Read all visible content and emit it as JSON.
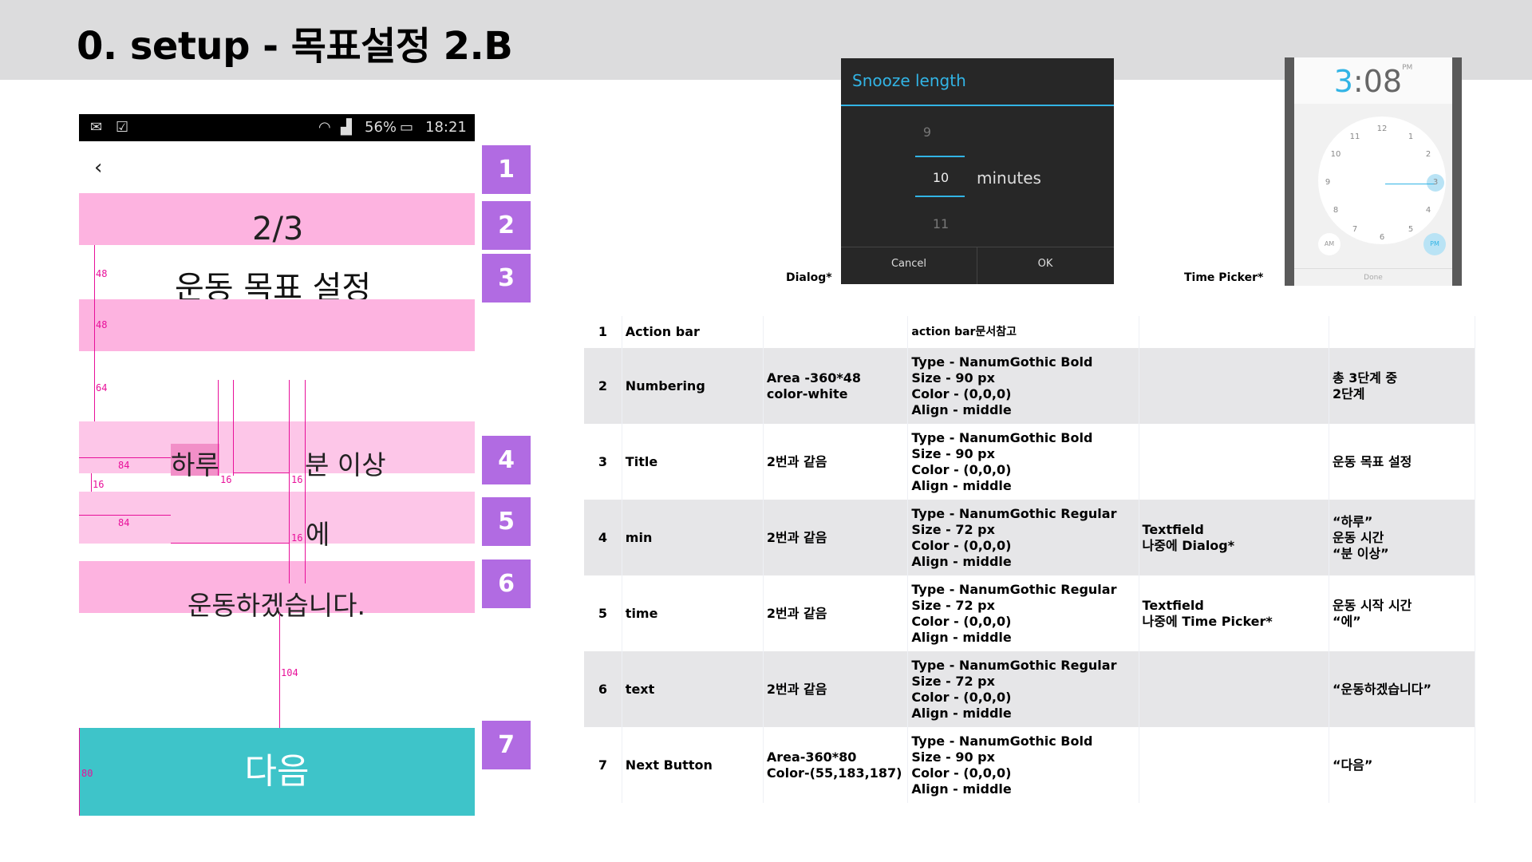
{
  "page": {
    "title": "0. setup - 목표설정 2.B"
  },
  "phone": {
    "status_bar": {
      "battery": "56%",
      "time": "18:21",
      "icons": [
        "mail-icon",
        "inbox-icon",
        "wifi-icon",
        "signal-icon",
        "battery-icon"
      ]
    },
    "back": "‹",
    "numbering": "2/3",
    "title": "운동 목표 설정",
    "row_min": {
      "value": "하루",
      "suffix": "분 이상"
    },
    "row_time": {
      "suffix": "에"
    },
    "row_text": "운동하겠습니다.",
    "next_button": "다음",
    "colors": {
      "pink_strong": "#fdb3e0",
      "pink_light": "#fdc6e8",
      "next_button": "#3ec4c9",
      "guide": "#e8109a"
    },
    "guides": [
      "48",
      "48",
      "64",
      "84",
      "16",
      "16",
      "16",
      "84",
      "16",
      "104",
      "80"
    ]
  },
  "markers": [
    "1",
    "2",
    "3",
    "4",
    "5",
    "6",
    "7"
  ],
  "dialog": {
    "caption": "Dialog*",
    "title": "Snooze length",
    "values": [
      "9",
      "10",
      "11"
    ],
    "unit": "minutes",
    "cancel": "Cancel",
    "ok": "OK"
  },
  "time_picker": {
    "caption": "Time Picker*",
    "hour": "3",
    "colon": ":",
    "minute": "08",
    "ampm": "PM",
    "numbers": [
      "12",
      "1",
      "2",
      "3",
      "4",
      "5",
      "6",
      "7",
      "8",
      "9",
      "10",
      "11"
    ],
    "am": "AM",
    "pm": "PM",
    "done": "Done"
  },
  "spec_table": {
    "rows": [
      {
        "no": "1",
        "name": "Action bar",
        "area": "",
        "spec": [
          "action bar문서참고"
        ],
        "note": [],
        "text": []
      },
      {
        "no": "2",
        "name": "Numbering",
        "area": [
          "Area -360*48",
          "color-white"
        ],
        "spec": [
          "Type - NanumGothic Bold",
          "Size - 90 px",
          "Color - (0,0,0)",
          "Align - middle"
        ],
        "note": [],
        "text": [
          "총 3단계 중",
          "2단계"
        ]
      },
      {
        "no": "3",
        "name": "Title",
        "area": [
          "2번과 같음"
        ],
        "spec": [
          "Type - NanumGothic Bold",
          "Size - 90 px",
          "Color - (0,0,0)",
          "Align - middle"
        ],
        "note": [],
        "text": [
          "운동 목표 설정"
        ]
      },
      {
        "no": "4",
        "name": "min",
        "area": [
          "2번과 같음"
        ],
        "spec": [
          "Type - NanumGothic Regular",
          "Size - 72 px",
          "Color - (0,0,0)",
          "Align - middle"
        ],
        "note": [
          "Textfield",
          "나중에 Dialog*"
        ],
        "text": [
          "“하루”",
          "운동 시간",
          "“분 이상”"
        ]
      },
      {
        "no": "5",
        "name": "time",
        "area": [
          "2번과 같음"
        ],
        "spec": [
          "Type - NanumGothic Regular",
          "Size - 72 px",
          "Color - (0,0,0)",
          "Align - middle"
        ],
        "note": [
          "Textfield",
          "나중에 Time Picker*"
        ],
        "text": [
          "운동 시작 시간",
          "“에”"
        ]
      },
      {
        "no": "6",
        "name": "text",
        "area": [
          "2번과 같음"
        ],
        "spec": [
          "Type - NanumGothic Regular",
          "Size - 72 px",
          "Color - (0,0,0)",
          "Align - middle"
        ],
        "note": [],
        "text": [
          "“운동하겠습니다”"
        ]
      },
      {
        "no": "7",
        "name": "Next Button",
        "area": [
          "Area-360*80",
          "Color-(55,183,187)"
        ],
        "spec": [
          "Type - NanumGothic Bold",
          "Size - 90 px",
          "Color - (0,0,0)",
          "Align - middle"
        ],
        "note": [],
        "text": [
          "“다음”"
        ]
      }
    ]
  }
}
